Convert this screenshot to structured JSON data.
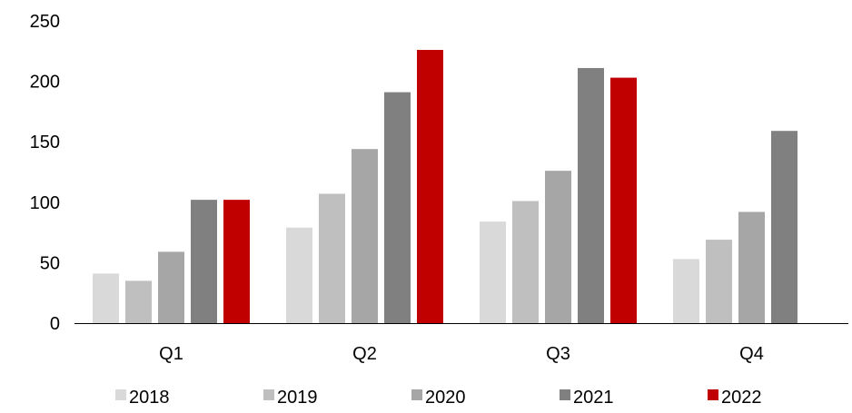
{
  "chart_data": {
    "type": "bar",
    "title": "",
    "xlabel": "",
    "ylabel": "",
    "categories": [
      "Q1",
      "Q2",
      "Q3",
      "Q4"
    ],
    "ylim": [
      0,
      250
    ],
    "yticks": [
      0,
      50,
      100,
      150,
      200,
      250
    ],
    "grid": false,
    "legend_position": "bottom",
    "series": [
      {
        "name": "2018",
        "color": "#d9d9d9",
        "values": [
          41,
          79,
          84,
          53
        ]
      },
      {
        "name": "2019",
        "color": "#bfbfbf",
        "values": [
          35,
          107,
          101,
          69
        ]
      },
      {
        "name": "2020",
        "color": "#a6a6a6",
        "values": [
          59,
          144,
          126,
          92
        ]
      },
      {
        "name": "2021",
        "color": "#808080",
        "values": [
          102,
          191,
          211,
          159
        ]
      },
      {
        "name": "2022",
        "color": "#c00000",
        "values": [
          102,
          226,
          203,
          null
        ]
      }
    ]
  }
}
